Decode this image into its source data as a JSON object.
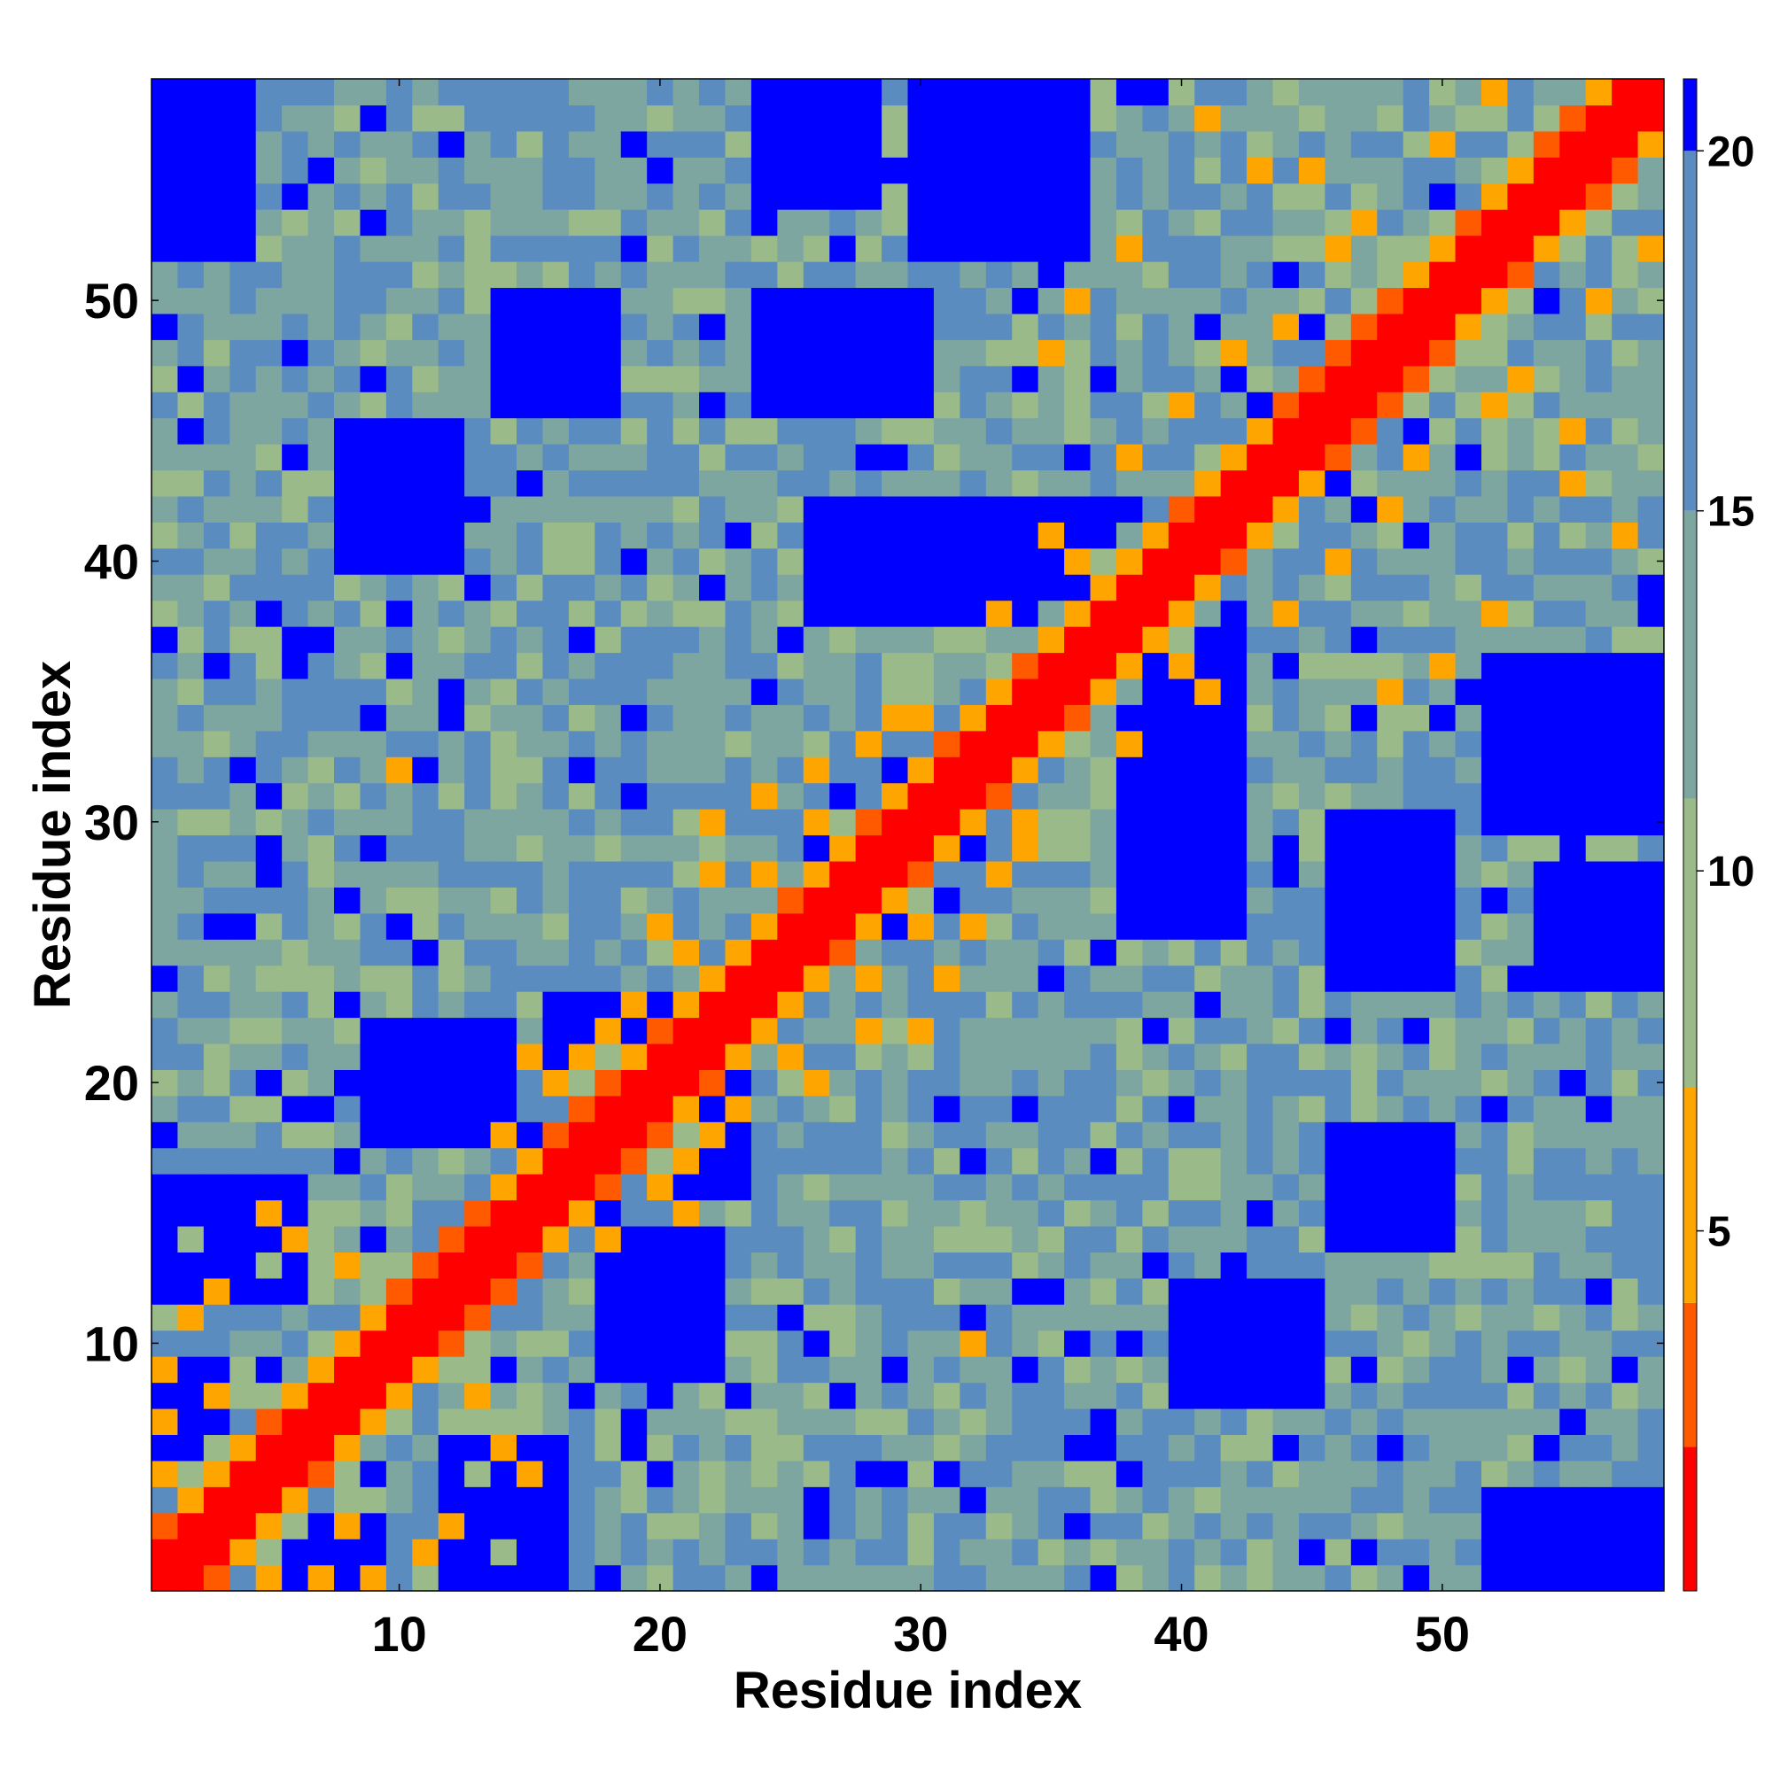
{
  "chart_data": {
    "type": "heatmap",
    "title": "",
    "xlabel": "Residue index",
    "ylabel": "Residue index",
    "n_residues": 58,
    "xlim": [
      0.5,
      58.5
    ],
    "ylim": [
      0.5,
      58.5
    ],
    "x_ticks": [
      10,
      20,
      30,
      40,
      50
    ],
    "y_ticks": [
      10,
      20,
      30,
      40,
      50
    ],
    "value_meaning": "symmetric residue–residue distance map; diagonal minimal, far residues saturated",
    "colorbar": {
      "min": 0,
      "max": 21,
      "ticks": [
        5,
        10,
        15,
        20
      ],
      "colors": [
        "#ff0000",
        "#ff5a00",
        "#ffa500",
        "#9aba89",
        "#7ea6a0",
        "#5b8cc0",
        "#0000ff"
      ],
      "boundaries": [
        0,
        2,
        4,
        7,
        11,
        15,
        20,
        21
      ]
    },
    "contacts": [
      [
        1,
        5,
        4
      ],
      [
        1,
        7,
        5
      ],
      [
        1,
        9,
        6
      ],
      [
        2,
        11,
        6
      ],
      [
        2,
        14,
        8
      ],
      [
        3,
        8,
        5
      ],
      [
        3,
        12,
        4
      ],
      [
        5,
        13,
        7
      ],
      [
        5,
        15,
        6
      ],
      [
        6,
        14,
        6
      ],
      [
        7,
        10,
        7
      ],
      [
        8,
        13,
        4
      ],
      [
        10,
        16,
        7
      ],
      [
        12,
        17,
        7
      ],
      [
        14,
        18,
        6
      ],
      [
        15,
        21,
        5
      ],
      [
        17,
        21,
        5
      ],
      [
        18,
        22,
        6
      ],
      [
        20,
        26,
        5
      ],
      [
        21,
        25,
        6
      ],
      [
        22,
        28,
        6
      ],
      [
        22,
        30,
        5
      ],
      [
        24,
        28,
        6
      ],
      [
        24,
        31,
        6
      ],
      [
        26,
        30,
        5
      ],
      [
        26,
        32,
        4
      ],
      [
        28,
        33,
        6
      ],
      [
        29,
        34,
        5
      ],
      [
        30,
        34,
        6
      ],
      [
        33,
        38,
        6
      ],
      [
        35,
        41,
        6
      ],
      [
        36,
        40,
        5
      ],
      [
        38,
        44,
        6
      ],
      [
        40,
        46,
        6
      ],
      [
        42,
        48,
        5
      ],
      [
        44,
        49,
        6
      ],
      [
        46,
        52,
        6
      ],
      [
        47,
        53,
        5
      ],
      [
        50,
        56,
        6
      ],
      [
        52,
        58,
        5
      ],
      [
        12,
        31,
        7
      ],
      [
        10,
        32,
        6
      ],
      [
        4,
        22,
        7
      ],
      [
        6,
        24,
        8
      ],
      [
        16,
        20,
        4
      ],
      [
        19,
        23,
        5
      ],
      [
        35,
        48,
        5
      ],
      [
        36,
        50,
        6
      ],
      [
        38,
        52,
        6
      ],
      [
        41,
        57,
        6
      ],
      [
        43,
        55,
        6
      ],
      [
        45,
        55,
        5
      ],
      [
        49,
        52,
        7
      ],
      [
        31,
        37,
        7
      ],
      [
        33,
        36,
        8
      ]
    ],
    "far_blocks": [
      [
        26,
        40,
        38,
        42
      ],
      [
        1,
        4,
        52,
        58
      ],
      [
        24,
        30,
        46,
        50
      ],
      [
        1,
        3,
        1,
        9
      ],
      [
        1,
        6,
        12,
        16
      ],
      [
        8,
        12,
        40,
        45
      ],
      [
        14,
        18,
        46,
        50
      ],
      [
        1,
        2,
        53,
        58
      ],
      [
        30,
        36,
        52,
        58
      ],
      [
        16,
        21,
        17,
        23
      ],
      [
        24,
        28,
        54,
        58
      ],
      [
        9,
        14,
        18,
        22
      ]
    ]
  }
}
